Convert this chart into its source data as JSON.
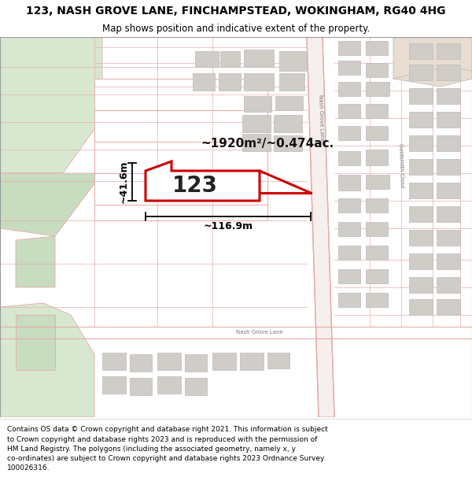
{
  "title_line1": "123, NASH GROVE LANE, FINCHAMPSTEAD, WOKINGHAM, RG40 4HG",
  "title_line2": "Map shows position and indicative extent of the property.",
  "footer_text": "Contains OS data © Crown copyright and database right 2021. This information is subject\nto Crown copyright and database rights 2023 and is reproduced with the permission of\nHM Land Registry. The polygons (including the associated geometry, namely x, y\nco-ordinates) are subject to Crown copyright and database rights 2023 Ordnance Survey\n100026316.",
  "area_text": "~1920m²/~0.474ac.",
  "width_text": "~116.9m",
  "height_text": "~41.6m",
  "property_number": "123",
  "map_bg": "#ffffff",
  "road_color": "#e8aaaa",
  "building_color": "#d0ccc8",
  "building_edge": "#bbbbbb",
  "highlight_color": "#cc0000",
  "green1": "#d8e8d0",
  "green2": "#c8dcc0",
  "title_fontsize": 10,
  "subtitle_fontsize": 8.5,
  "footer_fontsize": 6.5
}
